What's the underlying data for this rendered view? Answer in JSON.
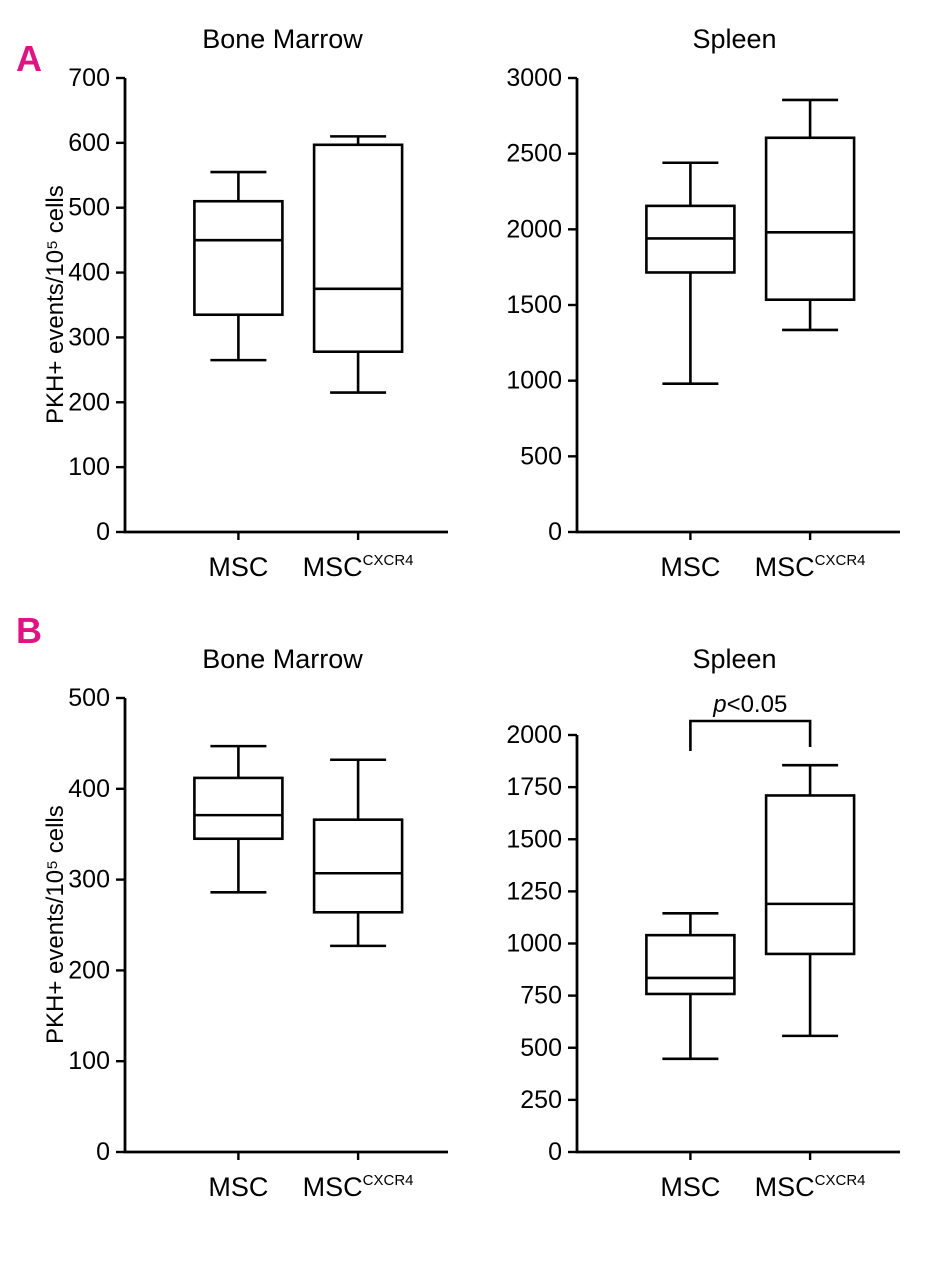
{
  "figure": {
    "panel_a_label": "A",
    "panel_b_label": "B",
    "accent_color": "#e01383",
    "line_color": "#000000"
  },
  "chart_data": [
    {
      "type": "boxplot",
      "panel": "A",
      "title": "Bone Marrow",
      "ylabel": "PKH+ events/10⁵ cells",
      "xlabel": "",
      "ylim": [
        0,
        700
      ],
      "ytick_step": 100,
      "grid": false,
      "categories": [
        {
          "base": "MSC",
          "sup": ""
        },
        {
          "base": "MSC",
          "sup": "CXCR4"
        }
      ],
      "boxes": [
        {
          "low": 265,
          "q1": 335,
          "median": 450,
          "q3": 510,
          "high": 555
        },
        {
          "low": 215,
          "q1": 278,
          "median": 375,
          "q3": 597,
          "high": 610
        }
      ]
    },
    {
      "type": "boxplot",
      "panel": "A",
      "title": "Spleen",
      "xlabel": "",
      "ylim": [
        0,
        3000
      ],
      "ytick_step": 500,
      "grid": false,
      "categories": [
        {
          "base": "MSC",
          "sup": ""
        },
        {
          "base": "MSC",
          "sup": "CXCR4"
        }
      ],
      "boxes": [
        {
          "low": 980,
          "q1": 1715,
          "median": 1940,
          "q3": 2155,
          "high": 2440
        },
        {
          "low": 1335,
          "q1": 1535,
          "median": 1980,
          "q3": 2605,
          "high": 2855
        }
      ]
    },
    {
      "type": "boxplot",
      "panel": "B",
      "title": "Bone Marrow",
      "ylabel": "PKH+ events/10⁵ cells",
      "xlabel": "",
      "ylim": [
        0,
        500
      ],
      "ytick_step": 100,
      "grid": false,
      "categories": [
        {
          "base": "MSC",
          "sup": ""
        },
        {
          "base": "MSC",
          "sup": "CXCR4"
        }
      ],
      "boxes": [
        {
          "low": 286,
          "q1": 345,
          "median": 371,
          "q3": 412,
          "high": 447
        },
        {
          "low": 227,
          "q1": 264,
          "median": 307,
          "q3": 366,
          "high": 432
        }
      ]
    },
    {
      "type": "boxplot",
      "panel": "B",
      "title": "Spleen",
      "xlabel": "",
      "ylim": [
        0,
        2000
      ],
      "ytick_step": 250,
      "grid": false,
      "annotation": {
        "italic": "p",
        "text": "<0.05"
      },
      "categories": [
        {
          "base": "MSC",
          "sup": ""
        },
        {
          "base": "MSC",
          "sup": "CXCR4"
        }
      ],
      "boxes": [
        {
          "low": 447,
          "q1": 758,
          "median": 835,
          "q3": 1040,
          "high": 1145
        },
        {
          "low": 557,
          "q1": 950,
          "median": 1190,
          "q3": 1710,
          "high": 1855
        }
      ]
    }
  ]
}
